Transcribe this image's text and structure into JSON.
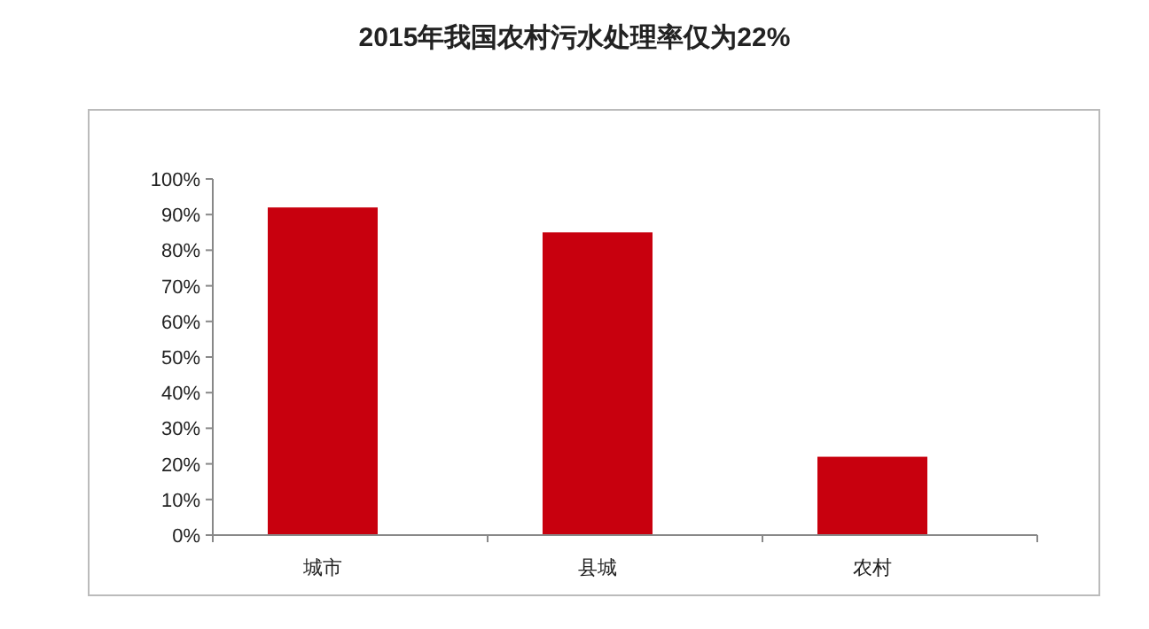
{
  "chart_data": {
    "type": "bar",
    "title": "2015年我国农村污水处理率仅为22%",
    "categories": [
      "城市",
      "县城",
      "农村"
    ],
    "values": [
      92,
      85,
      22
    ],
    "color": "#c8000e",
    "ylim": [
      0,
      100
    ],
    "yticks": [
      {
        "value": 0,
        "label": "0%"
      },
      {
        "value": 10,
        "label": "10%"
      },
      {
        "value": 20,
        "label": "20%"
      },
      {
        "value": 30,
        "label": "30%"
      },
      {
        "value": 40,
        "label": "40%"
      },
      {
        "value": 50,
        "label": "50%"
      },
      {
        "value": 60,
        "label": "60%"
      },
      {
        "value": 70,
        "label": "70%"
      },
      {
        "value": 80,
        "label": "80%"
      },
      {
        "value": 90,
        "label": "90%"
      },
      {
        "value": 100,
        "label": "100%"
      }
    ],
    "grid": false
  }
}
